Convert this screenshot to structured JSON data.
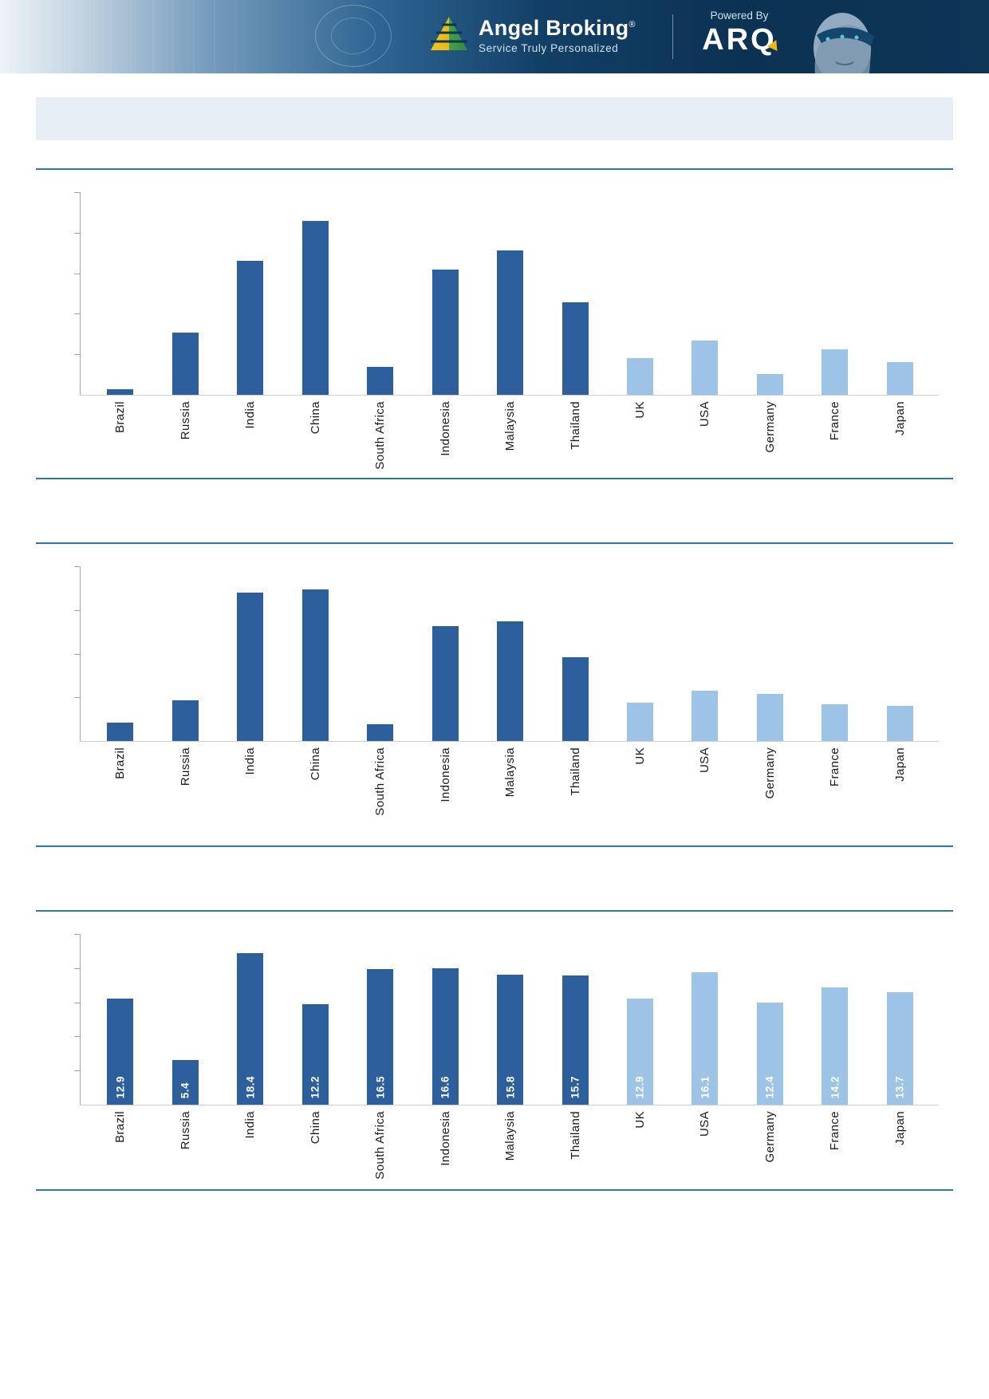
{
  "header": {
    "brand": "Angel Broking",
    "registered_mark": "®",
    "tagline": "Service Truly Personalized",
    "powered_by": "Powered By",
    "powered_brand": "ARQ"
  },
  "banner": {
    "title": ""
  },
  "colors": {
    "bar_dark": "#2d5f9d",
    "bar_light": "#9dc3e6",
    "divider": "#2e75b6",
    "banner_bg": "#e8eef5",
    "header_navy": "#0d3556",
    "accent_yellow": "#f2b51d"
  },
  "chart_data": [
    {
      "type": "bar",
      "title": "",
      "xlabel": "",
      "ylabel": "",
      "values_scale": "percent_of_tallest_bar (y-axis ticks unlabeled in source)",
      "categories": [
        "Brazil",
        "Russia",
        "India",
        "China",
        "South Africa",
        "Indonesia",
        "Malaysia",
        "Thailand",
        "UK",
        "USA",
        "Germany",
        "France",
        "Japan"
      ],
      "values": [
        3,
        36,
        77,
        100,
        16,
        72,
        83,
        53,
        21,
        31,
        12,
        26,
        19
      ],
      "value_labels_visible": false,
      "dark_count": 8,
      "color_dark": "#2d5f9d",
      "color_light": "#9dc3e6",
      "legend": "none",
      "grid": false
    },
    {
      "type": "bar",
      "title": "",
      "xlabel": "",
      "ylabel": "",
      "values_scale": "percent_of_tallest_bar (y-axis ticks unlabeled in source)",
      "categories": [
        "Brazil",
        "Russia",
        "India",
        "China",
        "South Africa",
        "Indonesia",
        "Malaysia",
        "Thailand",
        "UK",
        "USA",
        "Germany",
        "France",
        "Japan"
      ],
      "values": [
        12,
        27,
        98,
        100,
        11,
        76,
        79,
        55,
        25,
        33,
        31,
        24,
        23
      ],
      "value_labels_visible": false,
      "dark_count": 8,
      "color_dark": "#2d5f9d",
      "color_light": "#9dc3e6",
      "legend": "none",
      "grid": false
    },
    {
      "type": "bar",
      "title": "",
      "xlabel": "",
      "ylabel": "",
      "categories": [
        "Brazil",
        "Russia",
        "India",
        "China",
        "South Africa",
        "Indonesia",
        "Malaysia",
        "Thailand",
        "UK",
        "USA",
        "Germany",
        "France",
        "Japan"
      ],
      "values": [
        12.9,
        5.4,
        18.4,
        12.2,
        16.5,
        16.6,
        15.8,
        15.7,
        12.9,
        16.1,
        12.4,
        14.2,
        13.7
      ],
      "value_labels": [
        "12.9",
        "5.4",
        "18.4",
        "12.2",
        "16.5",
        "16.6",
        "15.8",
        "15.7",
        "12.9",
        "16.1",
        "12.4",
        "14.2",
        "13.7"
      ],
      "value_labels_visible": true,
      "dark_count": 8,
      "color_dark": "#2d5f9d",
      "color_light": "#9dc3e6",
      "legend": "none",
      "grid": false
    }
  ]
}
